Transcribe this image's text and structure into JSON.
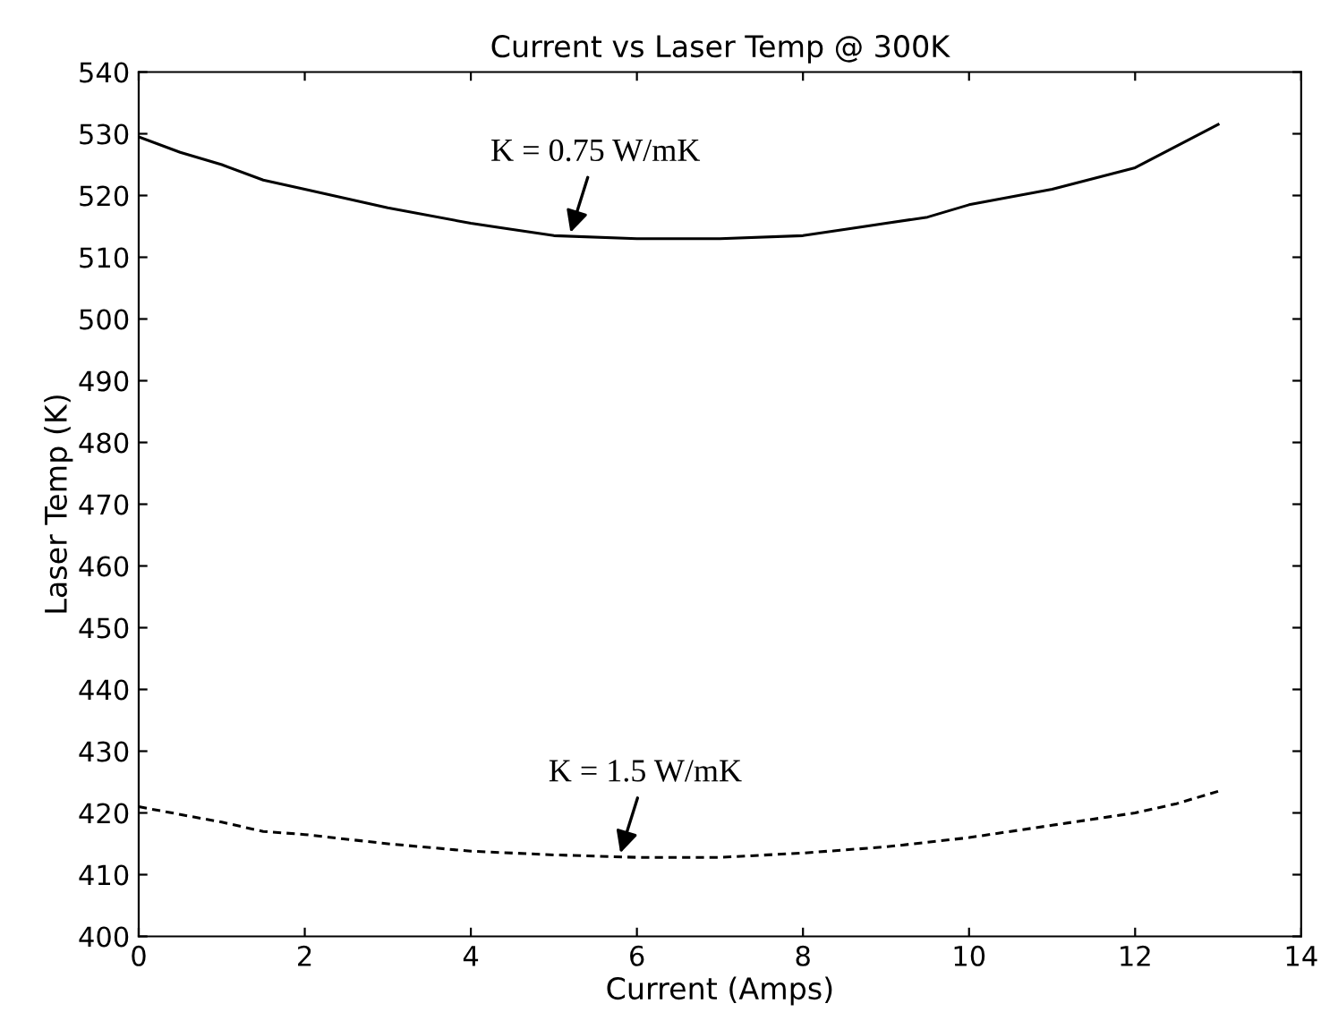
{
  "chart_data": {
    "type": "line",
    "title": "Current vs Laser Temp @ 300K",
    "xlabel": "Current (Amps)",
    "ylabel": "Laser Temp (K)",
    "xlim": [
      0,
      14
    ],
    "xticks": [
      0,
      2,
      4,
      6,
      8,
      10,
      12,
      14
    ],
    "ylim": [
      400,
      540
    ],
    "yticks": [
      400,
      410,
      420,
      430,
      440,
      450,
      460,
      470,
      480,
      490,
      500,
      510,
      520,
      530,
      540
    ],
    "grid": false,
    "legend": false,
    "series": [
      {
        "color": "#000000",
        "line_style": "solid",
        "x": [
          0,
          0.5,
          1,
          1.5,
          2,
          3,
          4,
          5,
          6,
          7,
          8,
          9,
          9.5,
          10,
          11,
          12,
          13
        ],
        "values": [
          529.5,
          527,
          525,
          522.5,
          521,
          518,
          515.5,
          513.5,
          513,
          513,
          513.5,
          515.5,
          516.5,
          518.5,
          521,
          524.5,
          531.5
        ]
      },
      {
        "color": "#000000",
        "line_style": "dashed",
        "x": [
          0,
          1,
          1.5,
          2,
          3,
          4,
          5,
          6,
          7,
          8,
          9,
          10,
          11,
          12,
          12.5,
          13
        ],
        "values": [
          421,
          418.5,
          417,
          416.5,
          415,
          413.8,
          413.2,
          412.8,
          412.8,
          413.5,
          414.5,
          416,
          418,
          420,
          421.5,
          423.5
        ]
      }
    ],
    "annotations": [
      {
        "text": "K = 0.75 W/mK",
        "x": 5.2,
        "y": 514
      },
      {
        "text": "K = 1.5 W/mK",
        "x": 5.8,
        "y": 413.5
      }
    ]
  }
}
